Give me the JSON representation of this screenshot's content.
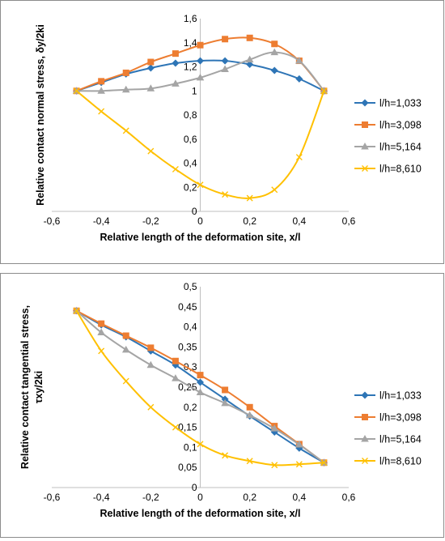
{
  "chart_data": [
    {
      "type": "line",
      "title": "",
      "xlabel": "Relative length of the deformation site, x/l",
      "ylabel": "Relative contact normal stress, δy/2ki",
      "xlim": [
        -0.6,
        0.6
      ],
      "ylim": [
        0,
        1.6
      ],
      "xticks": [
        -0.6,
        -0.4,
        -0.2,
        0,
        0.2,
        0.4,
        0.6
      ],
      "xtick_labels": [
        "-0,6",
        "-0,4",
        "-0,2",
        "0",
        "0,2",
        "0,4",
        "0,6"
      ],
      "yticks": [
        0,
        0.2,
        0.4,
        0.6,
        0.8,
        1,
        1.2,
        1.4,
        1.6
      ],
      "ytick_labels": [
        "0",
        "0,2",
        "0,4",
        "0,6",
        "0,8",
        "1",
        "1,2",
        "1,4",
        "1,6"
      ],
      "grid": false,
      "legend_position": "right",
      "series": [
        {
          "name": "l/h=1,033",
          "color": "#2e75b6",
          "marker": "diamond",
          "x": [
            -0.5,
            -0.4,
            -0.3,
            -0.2,
            -0.1,
            0,
            0.1,
            0.2,
            0.3,
            0.4,
            0.5
          ],
          "y": [
            1.0,
            1.07,
            1.14,
            1.19,
            1.23,
            1.25,
            1.25,
            1.22,
            1.17,
            1.1,
            1.0
          ]
        },
        {
          "name": "l/h=3,098",
          "color": "#ed7d31",
          "marker": "square",
          "x": [
            -0.5,
            -0.4,
            -0.3,
            -0.2,
            -0.1,
            0,
            0.1,
            0.2,
            0.3,
            0.4,
            0.5
          ],
          "y": [
            1.0,
            1.08,
            1.15,
            1.24,
            1.31,
            1.38,
            1.43,
            1.44,
            1.39,
            1.25,
            1.0
          ]
        },
        {
          "name": "l/h=5,164",
          "color": "#a5a5a5",
          "marker": "triangle",
          "x": [
            -0.5,
            -0.4,
            -0.3,
            -0.2,
            -0.1,
            0,
            0.1,
            0.2,
            0.3,
            0.4,
            0.5
          ],
          "y": [
            1.0,
            1.0,
            1.01,
            1.02,
            1.06,
            1.11,
            1.18,
            1.26,
            1.32,
            1.25,
            1.0
          ]
        },
        {
          "name": "l/h=8,610",
          "color": "#ffc000",
          "marker": "x",
          "x": [
            -0.5,
            -0.4,
            -0.3,
            -0.2,
            -0.1,
            0,
            0.1,
            0.2,
            0.3,
            0.4,
            0.5
          ],
          "y": [
            1.0,
            0.83,
            0.67,
            0.5,
            0.35,
            0.22,
            0.14,
            0.11,
            0.18,
            0.45,
            1.0
          ]
        }
      ]
    },
    {
      "type": "line",
      "title": "",
      "xlabel": "Relative length of the deformation site, x/l",
      "ylabel_lines": [
        "Relative contact tangential stress,",
        "τxy/2ki"
      ],
      "xlim": [
        -0.6,
        0.6
      ],
      "ylim": [
        0,
        0.5
      ],
      "xticks": [
        -0.6,
        -0.4,
        -0.2,
        0,
        0.2,
        0.4,
        0.6
      ],
      "xtick_labels": [
        "-0,6",
        "-0,4",
        "-0,2",
        "0",
        "0,2",
        "0,4",
        "0,6"
      ],
      "yticks": [
        0,
        0.05,
        0.1,
        0.15,
        0.2,
        0.25,
        0.3,
        0.35,
        0.4,
        0.45,
        0.5
      ],
      "ytick_labels": [
        "0",
        "0,05",
        "0,1",
        "0,15",
        "0,2",
        "0,25",
        "0,3",
        "0,35",
        "0,4",
        "0,45",
        "0,5"
      ],
      "grid": false,
      "legend_position": "right",
      "series": [
        {
          "name": "l/h=1,033",
          "color": "#2e75b6",
          "marker": "diamond",
          "x": [
            -0.5,
            -0.4,
            -0.3,
            -0.2,
            -0.1,
            0,
            0.1,
            0.2,
            0.3,
            0.4,
            0.5
          ],
          "y": [
            0.44,
            0.405,
            0.375,
            0.34,
            0.305,
            0.262,
            0.22,
            0.178,
            0.138,
            0.098,
            0.062
          ]
        },
        {
          "name": "l/h=3,098",
          "color": "#ed7d31",
          "marker": "square",
          "x": [
            -0.5,
            -0.4,
            -0.3,
            -0.2,
            -0.1,
            0,
            0.1,
            0.2,
            0.3,
            0.4,
            0.5
          ],
          "y": [
            0.44,
            0.408,
            0.378,
            0.348,
            0.315,
            0.28,
            0.243,
            0.2,
            0.153,
            0.108,
            0.062
          ]
        },
        {
          "name": "l/h=5,164",
          "color": "#a5a5a5",
          "marker": "triangle",
          "x": [
            -0.5,
            -0.4,
            -0.3,
            -0.2,
            -0.1,
            0,
            0.1,
            0.2,
            0.3,
            0.4,
            0.5
          ],
          "y": [
            0.44,
            0.386,
            0.343,
            0.305,
            0.272,
            0.237,
            0.21,
            0.18,
            0.147,
            0.107,
            0.062
          ]
        },
        {
          "name": "l/h=8,610",
          "color": "#ffc000",
          "marker": "x",
          "x": [
            -0.5,
            -0.4,
            -0.3,
            -0.2,
            -0.1,
            0,
            0.1,
            0.2,
            0.3,
            0.4,
            0.5
          ],
          "y": [
            0.44,
            0.34,
            0.265,
            0.2,
            0.15,
            0.108,
            0.08,
            0.066,
            0.056,
            0.058,
            0.062
          ]
        }
      ]
    }
  ]
}
